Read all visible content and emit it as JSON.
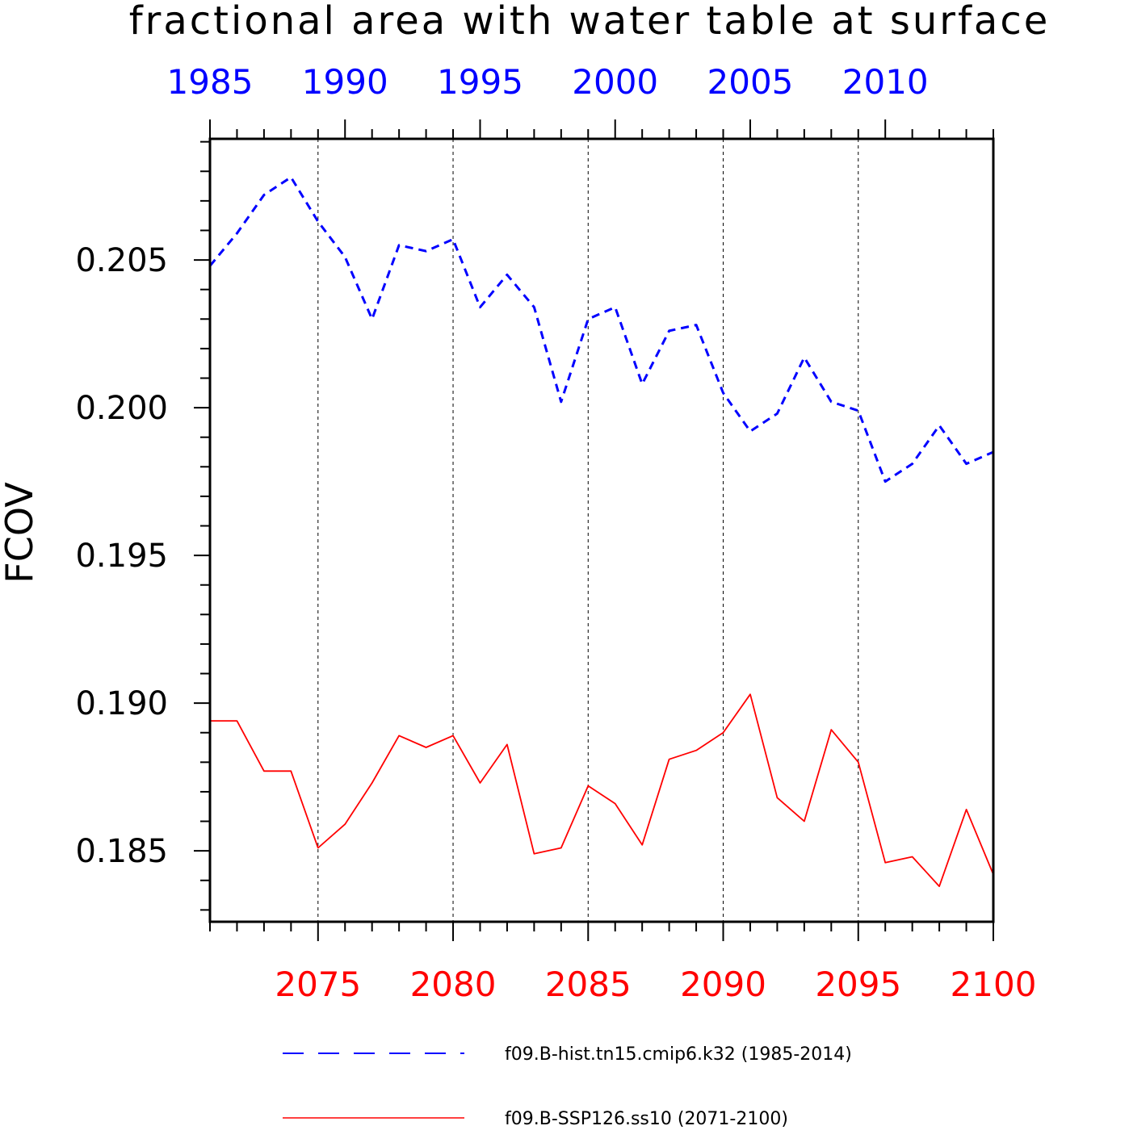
{
  "chart_data": {
    "type": "line",
    "title": "fractional area with water table at surface",
    "ylabel": "FCOV",
    "ylim": [
      0.1826,
      0.2091
    ],
    "yticks": [
      "0.185",
      "0.190",
      "0.195",
      "0.200",
      "0.205"
    ],
    "ytick_values": [
      0.185,
      0.19,
      0.195,
      0.2,
      0.205
    ],
    "grid": "vertical dashed lines at labeled x ticks",
    "legend_position": "bottom",
    "x_top": {
      "range": [
        1985,
        2014
      ],
      "ticks": [
        "1985",
        "1990",
        "1995",
        "2000",
        "2005",
        "2010"
      ],
      "tick_values": [
        1985,
        1990,
        1995,
        2000,
        2005,
        2010
      ],
      "color": "#0000ff"
    },
    "x_bottom": {
      "range": [
        2071,
        2100
      ],
      "ticks": [
        "2075",
        "2080",
        "2085",
        "2090",
        "2095",
        "2100"
      ],
      "tick_values": [
        2075,
        2080,
        2085,
        2090,
        2095,
        2100
      ],
      "color": "#ff0000"
    },
    "series": [
      {
        "name": "f09.B-hist.tn15.cmip6.k32 (1985-2014)",
        "axis": "top",
        "color": "#0000ff",
        "style": "dashed",
        "x": [
          1985,
          1986,
          1987,
          1988,
          1989,
          1990,
          1991,
          1992,
          1993,
          1994,
          1995,
          1996,
          1997,
          1998,
          1999,
          2000,
          2001,
          2002,
          2003,
          2004,
          2005,
          2006,
          2007,
          2008,
          2009,
          2010,
          2011,
          2012,
          2013,
          2014
        ],
        "values": [
          0.2048,
          0.2059,
          0.2072,
          0.2078,
          0.2063,
          0.2051,
          0.203,
          0.2055,
          0.2053,
          0.2057,
          0.2034,
          0.2045,
          0.2034,
          0.2002,
          0.203,
          0.2034,
          0.2008,
          0.2026,
          0.2028,
          0.2005,
          0.1992,
          0.1998,
          0.2017,
          0.2002,
          0.1999,
          0.1975,
          0.1981,
          0.1994,
          0.1981,
          0.1985
        ]
      },
      {
        "name": "f09.B-SSP126.ss10 (2071-2100)",
        "axis": "bottom",
        "color": "#ff0000",
        "style": "solid",
        "x": [
          2071,
          2072,
          2073,
          2074,
          2075,
          2076,
          2077,
          2078,
          2079,
          2080,
          2081,
          2082,
          2083,
          2084,
          2085,
          2086,
          2087,
          2088,
          2089,
          2090,
          2091,
          2092,
          2093,
          2094,
          2095,
          2096,
          2097,
          2098,
          2099,
          2100
        ],
        "values": [
          0.1894,
          0.1894,
          0.1877,
          0.1877,
          0.1851,
          0.1859,
          0.1873,
          0.1889,
          0.1885,
          0.1889,
          0.1873,
          0.1886,
          0.1849,
          0.1851,
          0.1872,
          0.1866,
          0.1852,
          0.1881,
          0.1884,
          0.189,
          0.1903,
          0.1868,
          0.186,
          0.1891,
          0.188,
          0.1846,
          0.1848,
          0.1838,
          0.1864,
          0.1842
        ]
      }
    ]
  }
}
